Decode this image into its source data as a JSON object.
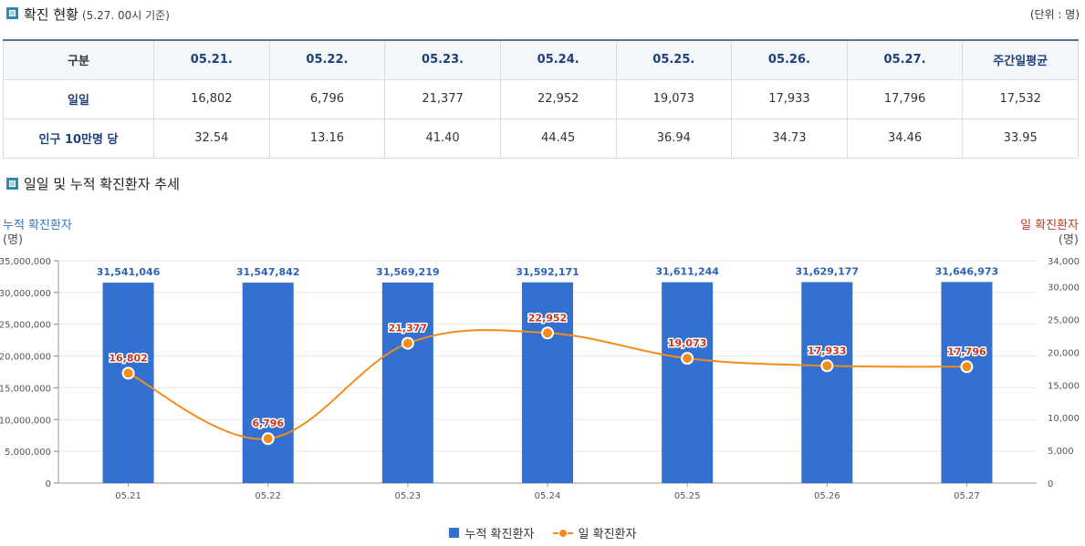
{
  "summary": {
    "title": "확진 현황",
    "subtitle": "(5.27. 00시 기준)",
    "unit": "(단위 : 명)",
    "columns": [
      "구분",
      "05.21.",
      "05.22.",
      "05.23.",
      "05.24.",
      "05.25.",
      "05.26.",
      "05.27.",
      "주간일평균"
    ],
    "rows": [
      {
        "label": "일일",
        "values": [
          "16,802",
          "6,796",
          "21,377",
          "22,952",
          "19,073",
          "17,933",
          "17,796",
          "17,532"
        ]
      },
      {
        "label": "인구 10만명 당",
        "values": [
          "32.54",
          "13.16",
          "41.40",
          "44.45",
          "36.94",
          "34.73",
          "34.46",
          "33.95"
        ]
      }
    ]
  },
  "trend": {
    "title": "일일 및 누적 확진환자 추세",
    "left_axis_label": "누적 확진환자",
    "right_axis_label": "일 확진환자",
    "axis_unit": "(명)",
    "colors": {
      "bar": "#3370d0",
      "bar_label": "#2d62b8",
      "line": "#f28c1c",
      "line_label": "#c8371f",
      "left_axis_title": "#3a70c4",
      "right_axis_title": "#c8371f"
    },
    "legend": {
      "bar": "누적 확진환자",
      "line": "일 확진환자"
    }
  },
  "chart_data": {
    "type": "bar",
    "categories": [
      "05.21",
      "05.22",
      "05.23",
      "05.24",
      "05.25",
      "05.26",
      "05.27"
    ],
    "series": [
      {
        "name": "누적 확진환자",
        "type": "bar",
        "axis": "left",
        "values": [
          31541046,
          31547842,
          31569219,
          31592171,
          31611244,
          31629177,
          31646973
        ],
        "labels": [
          "31,541,046",
          "31,547,842",
          "31,569,219",
          "31,592,171",
          "31,611,244",
          "31,629,177",
          "31,646,973"
        ]
      },
      {
        "name": "일 확진환자",
        "type": "line",
        "axis": "right",
        "values": [
          16802,
          6796,
          21377,
          22952,
          19073,
          17933,
          17796
        ],
        "labels": [
          "16,802",
          "6,796",
          "21,377",
          "22,952",
          "19,073",
          "17,933",
          "17,796"
        ]
      }
    ],
    "left_axis": {
      "min": 0,
      "max": 35000000,
      "ticks": [
        "0",
        "5,000,000",
        "10,000,000",
        "15,000,000",
        "20,000,000",
        "25,000,000",
        "30,000,000",
        "35,000,000"
      ]
    },
    "right_axis": {
      "min": 0,
      "max": 34000,
      "ticks": [
        "0",
        "5,000",
        "10,000",
        "15,000",
        "20,000",
        "25,000",
        "30,000",
        "34,000"
      ]
    },
    "ylabel_left": "누적 확진환자",
    "ylabel_right": "일 확진환자",
    "grid": true,
    "legend_position": "bottom-center"
  }
}
